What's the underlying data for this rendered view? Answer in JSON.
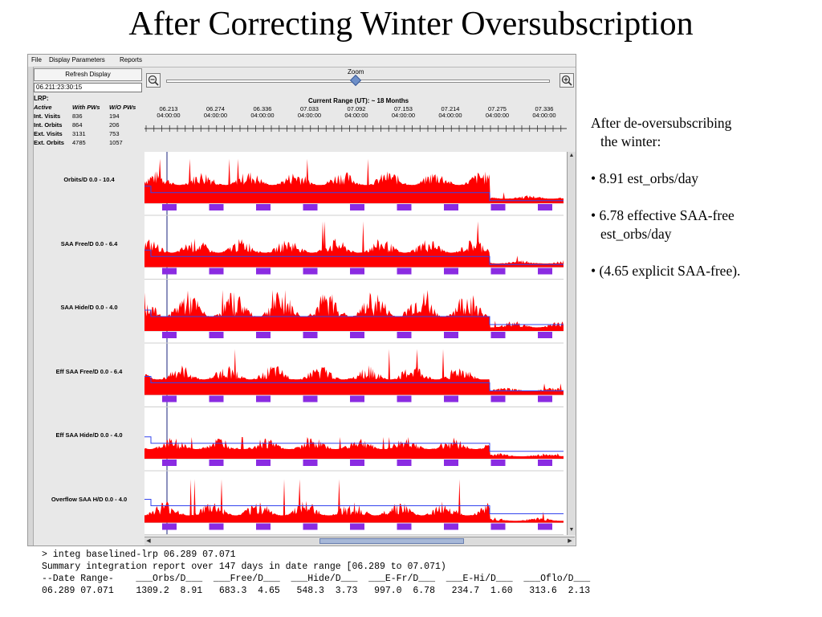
{
  "slide": {
    "title": "After Correcting Winter Oversubscription"
  },
  "menu": {
    "items": [
      "File",
      "Display Parameters",
      "Reports"
    ]
  },
  "controls": {
    "refresh_label": "Refresh Display",
    "time_value": "06.211:23:30:15",
    "lrp_label": "LRP:",
    "zoom_label": "Zoom",
    "range_label": "Current Range (UT): ~ 18 Months"
  },
  "stats": {
    "header": [
      "Active",
      "With PWs",
      "W/O PWs"
    ],
    "rows": [
      [
        "Int. Visits",
        "836",
        "194"
      ],
      [
        "Int. Orbits",
        "864",
        "206"
      ],
      [
        "Ext. Visits",
        "3131",
        "753"
      ],
      [
        "Ext. Orbits",
        "4785",
        "1057"
      ]
    ]
  },
  "axis": {
    "dates": [
      "06.213",
      "06.274",
      "06.336",
      "07.033",
      "07.092",
      "07.153",
      "07.214",
      "07.275",
      "07.336"
    ],
    "time": "04:00:00"
  },
  "plots": [
    {
      "label": "Orbits/D 0.0 - 10.4",
      "base": 0.38,
      "amp": 0.3,
      "spike": 0.92,
      "line": 0.22
    },
    {
      "label": "SAA Free/D 0.0 - 6.4",
      "base": 0.3,
      "amp": 0.3,
      "spike": 0.95,
      "line": 0.22
    },
    {
      "label": "SAA Hide/D 0.0 - 4.0",
      "base": 0.3,
      "amp": 0.55,
      "spike": 0.85,
      "line": 0.3
    },
    {
      "label": "Eff SAA Free/D 0.0 - 6.4",
      "base": 0.32,
      "amp": 0.3,
      "spike": 0.95,
      "line": 0.25
    },
    {
      "label": "Eff SAA Hide/D 0.0 - 4.0",
      "base": 0.2,
      "amp": 0.25,
      "spike": 0.45,
      "line": 0.32
    },
    {
      "label": "Overflow SAA H/D 0.0 - 4.0",
      "base": 0.15,
      "amp": 0.3,
      "spike": 0.9,
      "line": 0.35
    }
  ],
  "console": {
    "lines": [
      "> integ baselined-lrp 06.289 07.071",
      "Summary integration report over 147 days in date range [06.289 to 07.071)",
      "--Date Range-    ___Orbs/D___  ___Free/D___  ___Hide/D___  ___E-Fr/D___  ___E-Hi/D___  ___Oflo/D___",
      "06.289 07.071    1309.2  8.91   683.3  4.65   548.3  3.73   997.0  6.78   234.7  1.60   313.6  2.13"
    ]
  },
  "notes": {
    "intro_1": "After de-oversubscribing",
    "intro_2": "the winter:",
    "b1": "• 8.91 est_orbs/day",
    "b2_1": "• 6.78 effective SAA-free",
    "b2_2": "est_orbs/day",
    "b3": "• (4.65 explicit SAA-free)."
  },
  "colors": {
    "bars": "#ff0000",
    "line": "#3344ee",
    "saa": "#8a2be2"
  }
}
